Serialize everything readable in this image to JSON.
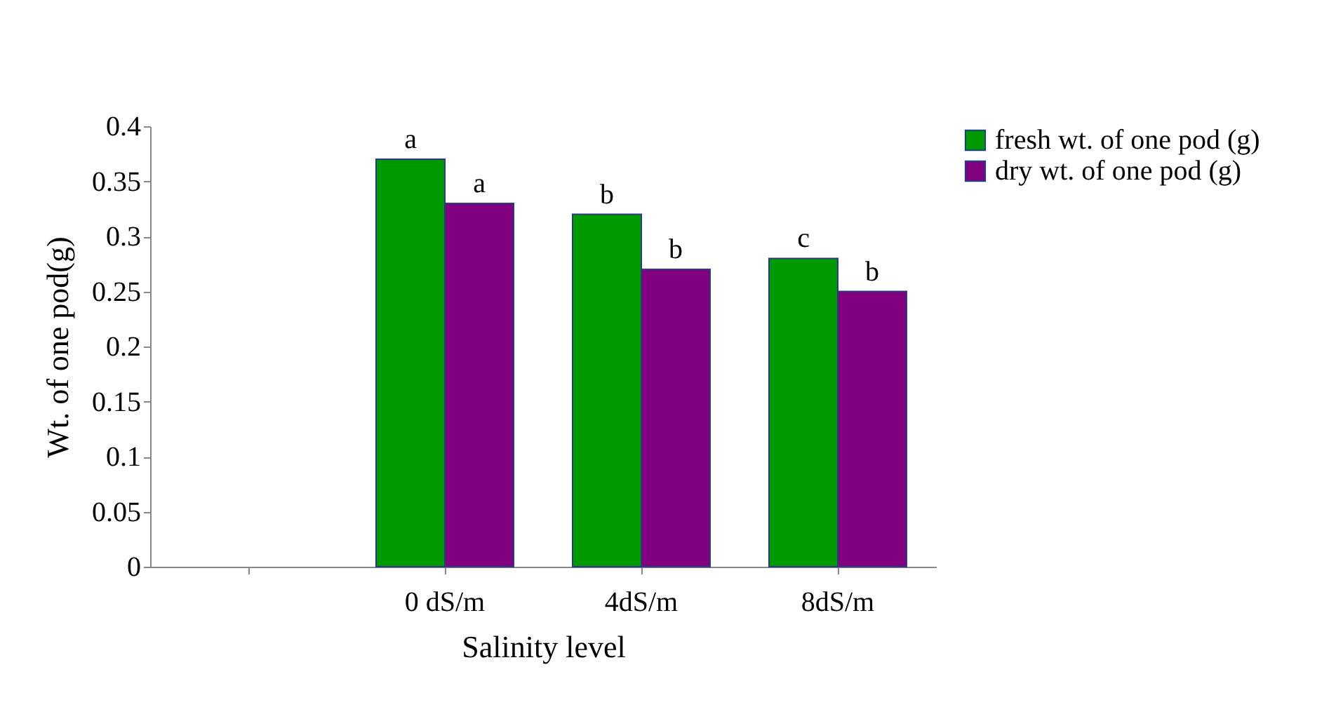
{
  "chart_data": {
    "type": "bar",
    "xlabel": "Salinity level",
    "ylabel": "Wt. of one pod(g)",
    "categories": [
      null,
      "0 dS/m",
      "4dS/m",
      "8dS/m"
    ],
    "series": [
      {
        "name": "fresh wt. of one pod (g)",
        "color": "#009900",
        "values": [
          null,
          0.37,
          0.32,
          0.28
        ]
      },
      {
        "name": "dry wt. of one pod (g)",
        "color": "#800080",
        "values": [
          null,
          0.33,
          0.27,
          0.25
        ]
      }
    ],
    "ylim": [
      0,
      0.4
    ],
    "yticks": [
      0,
      0.05,
      0.1,
      0.15,
      0.2,
      0.25,
      0.3,
      0.35,
      0.4
    ],
    "grid": false,
    "legend": "right",
    "annotations": [
      {
        "text": "a",
        "x": "0 dS/m",
        "y": 0.37
      },
      {
        "text": "a",
        "x": "0 dS/m",
        "y": 0.33
      },
      {
        "text": "b",
        "x": "4dS/m",
        "y": 0.32
      },
      {
        "text": "b",
        "x": "4dS/m",
        "y": 0.27
      },
      {
        "text": "c",
        "x": "8dS/m",
        "y": 0.28
      },
      {
        "text": "b",
        "x": "8dS/m",
        "y": 0.25
      }
    ]
  }
}
